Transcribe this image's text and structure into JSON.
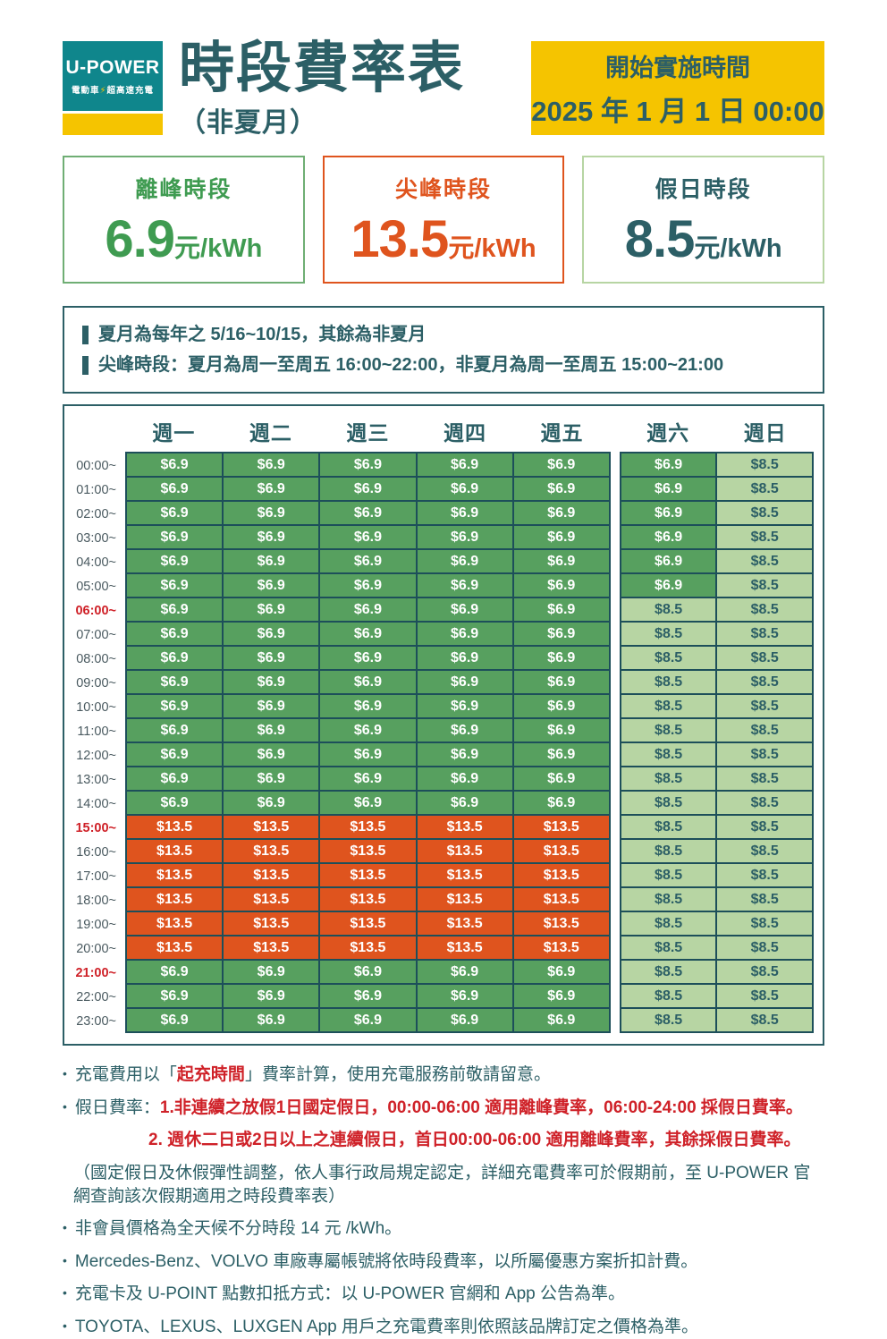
{
  "colors": {
    "brand_teal": "#0F868C",
    "brand_yellow": "#F5C400",
    "ink_teal": "#2C5F66",
    "offpeak_green": "#57A05F",
    "peak_orange": "#DF541E",
    "holiday_light_green": "#B7D5A3",
    "grid_line": "#1D4F5A",
    "alert_red": "#CF2128",
    "card_green_text": "#3F9B51"
  },
  "brand": {
    "name": "U-POWER",
    "tagline_left": "電動車",
    "tagline_bolt": "⚡",
    "tagline_right": "超高速充電"
  },
  "header": {
    "title": "時段費率表",
    "subtitle": "（非夏月）",
    "effective_label": "開始實施時間",
    "effective_date": "2025 年 1 月 1 日 00:00"
  },
  "rate_cards": [
    {
      "label": "離峰時段",
      "price": "6.9",
      "unit": "元/kWh",
      "text_color": "#3F9B51",
      "border_color": "#6FAE74"
    },
    {
      "label": "尖峰時段",
      "price": "13.5",
      "unit": "元/kWh",
      "text_color": "#DF541E",
      "border_color": "#DF541E"
    },
    {
      "label": "假日時段",
      "price": "8.5",
      "unit": "元/kWh",
      "text_color": "#2C5F66",
      "border_color": "#B7D5A3"
    }
  ],
  "season_notes": [
    "夏月為每年之 5/16~10/15，其餘為非夏月",
    "尖峰時段：夏月為周一至周五 16:00~22:00，非夏月為周一至周五 15:00~21:00"
  ],
  "table": {
    "day_headers": [
      "週一",
      "週二",
      "週三",
      "週四",
      "週五",
      "週六",
      "週日"
    ],
    "legend": {
      "offpeak": "$6.9",
      "peak": "$13.5",
      "holiday": "$8.5"
    },
    "rows": [
      {
        "time": "00:00~",
        "red": false,
        "values": [
          "$6.9",
          "$6.9",
          "$6.9",
          "$6.9",
          "$6.9",
          "$6.9",
          "$8.5"
        ]
      },
      {
        "time": "01:00~",
        "red": false,
        "values": [
          "$6.9",
          "$6.9",
          "$6.9",
          "$6.9",
          "$6.9",
          "$6.9",
          "$8.5"
        ]
      },
      {
        "time": "02:00~",
        "red": false,
        "values": [
          "$6.9",
          "$6.9",
          "$6.9",
          "$6.9",
          "$6.9",
          "$6.9",
          "$8.5"
        ]
      },
      {
        "time": "03:00~",
        "red": false,
        "values": [
          "$6.9",
          "$6.9",
          "$6.9",
          "$6.9",
          "$6.9",
          "$6.9",
          "$8.5"
        ]
      },
      {
        "time": "04:00~",
        "red": false,
        "values": [
          "$6.9",
          "$6.9",
          "$6.9",
          "$6.9",
          "$6.9",
          "$6.9",
          "$8.5"
        ]
      },
      {
        "time": "05:00~",
        "red": false,
        "values": [
          "$6.9",
          "$6.9",
          "$6.9",
          "$6.9",
          "$6.9",
          "$6.9",
          "$8.5"
        ]
      },
      {
        "time": "06:00~",
        "red": true,
        "values": [
          "$6.9",
          "$6.9",
          "$6.9",
          "$6.9",
          "$6.9",
          "$8.5",
          "$8.5"
        ]
      },
      {
        "time": "07:00~",
        "red": false,
        "values": [
          "$6.9",
          "$6.9",
          "$6.9",
          "$6.9",
          "$6.9",
          "$8.5",
          "$8.5"
        ]
      },
      {
        "time": "08:00~",
        "red": false,
        "values": [
          "$6.9",
          "$6.9",
          "$6.9",
          "$6.9",
          "$6.9",
          "$8.5",
          "$8.5"
        ]
      },
      {
        "time": "09:00~",
        "red": false,
        "values": [
          "$6.9",
          "$6.9",
          "$6.9",
          "$6.9",
          "$6.9",
          "$8.5",
          "$8.5"
        ]
      },
      {
        "time": "10:00~",
        "red": false,
        "values": [
          "$6.9",
          "$6.9",
          "$6.9",
          "$6.9",
          "$6.9",
          "$8.5",
          "$8.5"
        ]
      },
      {
        "time": "11:00~",
        "red": false,
        "values": [
          "$6.9",
          "$6.9",
          "$6.9",
          "$6.9",
          "$6.9",
          "$8.5",
          "$8.5"
        ]
      },
      {
        "time": "12:00~",
        "red": false,
        "values": [
          "$6.9",
          "$6.9",
          "$6.9",
          "$6.9",
          "$6.9",
          "$8.5",
          "$8.5"
        ]
      },
      {
        "time": "13:00~",
        "red": false,
        "values": [
          "$6.9",
          "$6.9",
          "$6.9",
          "$6.9",
          "$6.9",
          "$8.5",
          "$8.5"
        ]
      },
      {
        "time": "14:00~",
        "red": false,
        "values": [
          "$6.9",
          "$6.9",
          "$6.9",
          "$6.9",
          "$6.9",
          "$8.5",
          "$8.5"
        ]
      },
      {
        "time": "15:00~",
        "red": true,
        "values": [
          "$13.5",
          "$13.5",
          "$13.5",
          "$13.5",
          "$13.5",
          "$8.5",
          "$8.5"
        ]
      },
      {
        "time": "16:00~",
        "red": false,
        "values": [
          "$13.5",
          "$13.5",
          "$13.5",
          "$13.5",
          "$13.5",
          "$8.5",
          "$8.5"
        ]
      },
      {
        "time": "17:00~",
        "red": false,
        "values": [
          "$13.5",
          "$13.5",
          "$13.5",
          "$13.5",
          "$13.5",
          "$8.5",
          "$8.5"
        ]
      },
      {
        "time": "18:00~",
        "red": false,
        "values": [
          "$13.5",
          "$13.5",
          "$13.5",
          "$13.5",
          "$13.5",
          "$8.5",
          "$8.5"
        ]
      },
      {
        "time": "19:00~",
        "red": false,
        "values": [
          "$13.5",
          "$13.5",
          "$13.5",
          "$13.5",
          "$13.5",
          "$8.5",
          "$8.5"
        ]
      },
      {
        "time": "20:00~",
        "red": false,
        "values": [
          "$13.5",
          "$13.5",
          "$13.5",
          "$13.5",
          "$13.5",
          "$8.5",
          "$8.5"
        ]
      },
      {
        "time": "21:00~",
        "red": true,
        "values": [
          "$6.9",
          "$6.9",
          "$6.9",
          "$6.9",
          "$6.9",
          "$8.5",
          "$8.5"
        ]
      },
      {
        "time": "22:00~",
        "red": false,
        "values": [
          "$6.9",
          "$6.9",
          "$6.9",
          "$6.9",
          "$6.9",
          "$8.5",
          "$8.5"
        ]
      },
      {
        "time": "23:00~",
        "red": false,
        "values": [
          "$6.9",
          "$6.9",
          "$6.9",
          "$6.9",
          "$6.9",
          "$8.5",
          "$8.5"
        ]
      }
    ]
  },
  "footnotes": [
    {
      "bullet": true,
      "indent": 0,
      "segments": [
        {
          "t": "充電費用以「",
          "c": "teal"
        },
        {
          "t": "起充時間",
          "c": "red"
        },
        {
          "t": "」費率計算，使用充電服務前敬請留意。",
          "c": "teal"
        }
      ]
    },
    {
      "bullet": true,
      "indent": 0,
      "segments": [
        {
          "t": "假日費率：",
          "c": "teal"
        },
        {
          "t": "1.非連續之放假1日國定假日，00:00-06:00 適用離峰費率，06:00-24:00 採假日費率。",
          "c": "red"
        }
      ]
    },
    {
      "bullet": false,
      "indent": 2,
      "segments": [
        {
          "t": "2. 週休二日或2日以上之連續假日，首日00:00-06:00 適用離峰費率，其餘採假日費率。",
          "c": "red"
        }
      ]
    },
    {
      "bullet": false,
      "indent": 1,
      "segments": [
        {
          "t": "（國定假日及休假彈性調整，依人事行政局規定認定，詳細充電費率可於假期前，至 U-POWER 官網查詢該次假期適用之時段費率表）",
          "c": "teal"
        }
      ]
    },
    {
      "bullet": true,
      "indent": 0,
      "segments": [
        {
          "t": "非會員價格為全天候不分時段 14 元 /kWh。",
          "c": "teal"
        }
      ]
    },
    {
      "bullet": true,
      "indent": 0,
      "segments": [
        {
          "t": "Mercedes-Benz、VOLVO 車廠專屬帳號將依時段費率，以所屬優惠方案折扣計費。",
          "c": "teal"
        }
      ]
    },
    {
      "bullet": true,
      "indent": 0,
      "segments": [
        {
          "t": "充電卡及 U-POINT 點數扣抵方式：以 U-POWER 官網和 App 公告為準。",
          "c": "teal"
        }
      ]
    },
    {
      "bullet": true,
      "indent": 0,
      "segments": [
        {
          "t": "TOYOTA、LEXUS、LUXGEN App 用戶之充電費率則依照該品牌訂定之價格為準。",
          "c": "teal"
        }
      ]
    }
  ]
}
